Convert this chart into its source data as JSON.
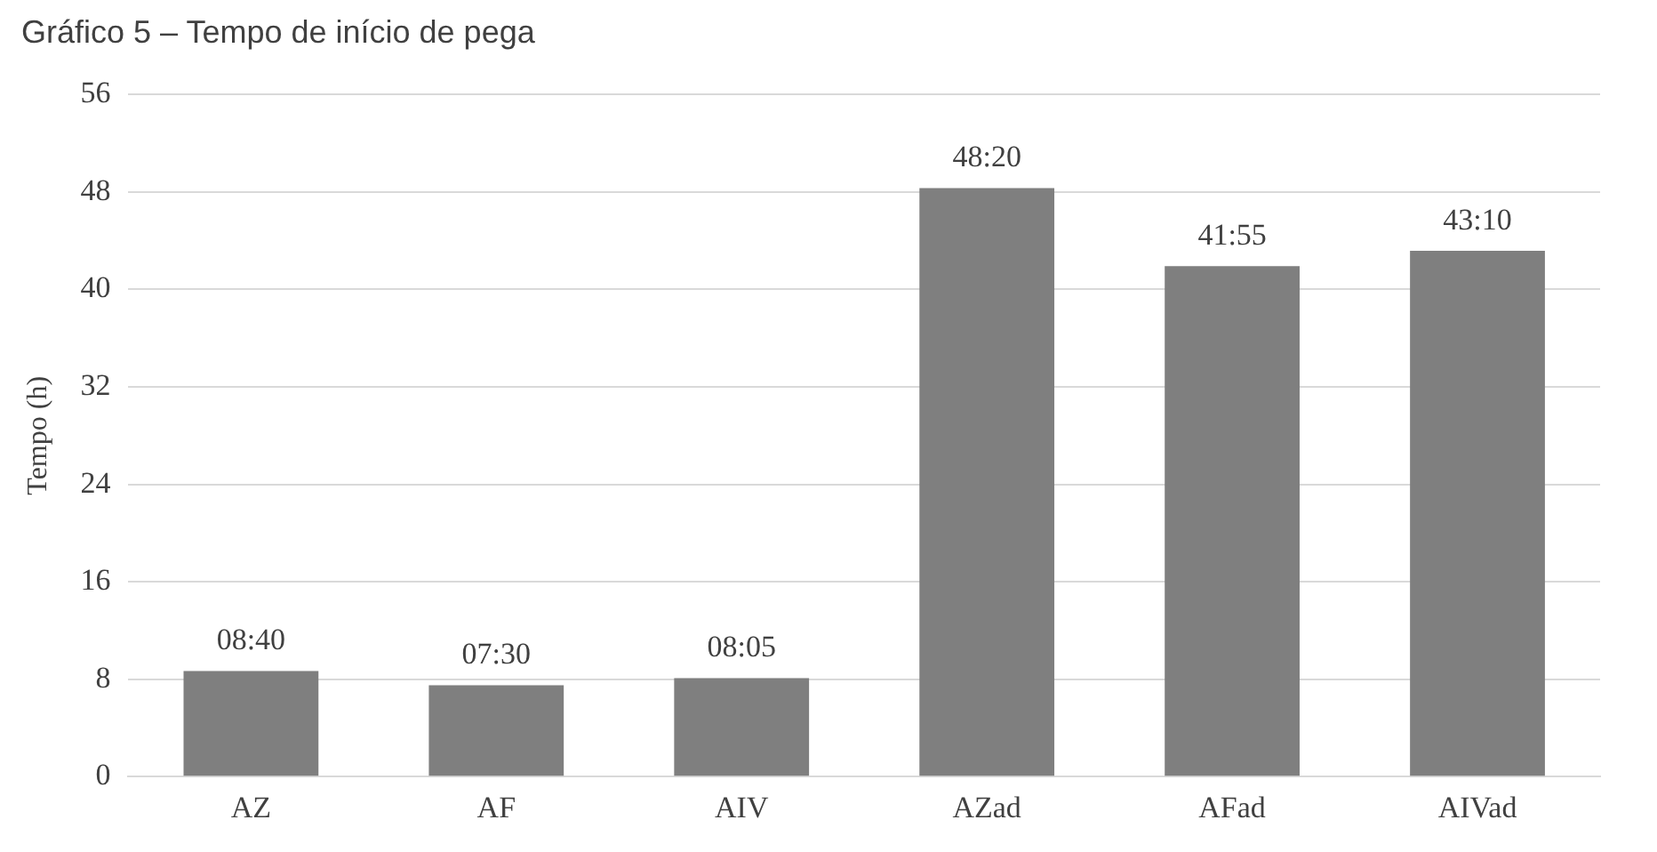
{
  "chart_data": {
    "type": "bar",
    "title": "Gráfico 5 – Tempo de início de pega",
    "ylabel": "Tempo (h)",
    "categories": [
      "AZ",
      "AF",
      "AIV",
      "AZad",
      "AFad",
      "AIVad"
    ],
    "values": [
      8.67,
      7.5,
      8.08,
      48.33,
      41.92,
      43.17
    ],
    "value_labels": [
      "08:40",
      "07:30",
      "08:05",
      "48:20",
      "41:55",
      "43:10"
    ],
    "color": "#7f7f7f",
    "ylim": [
      0,
      56
    ],
    "yticks": [
      0,
      8,
      16,
      24,
      32,
      40,
      48,
      56
    ],
    "grid": "y"
  }
}
